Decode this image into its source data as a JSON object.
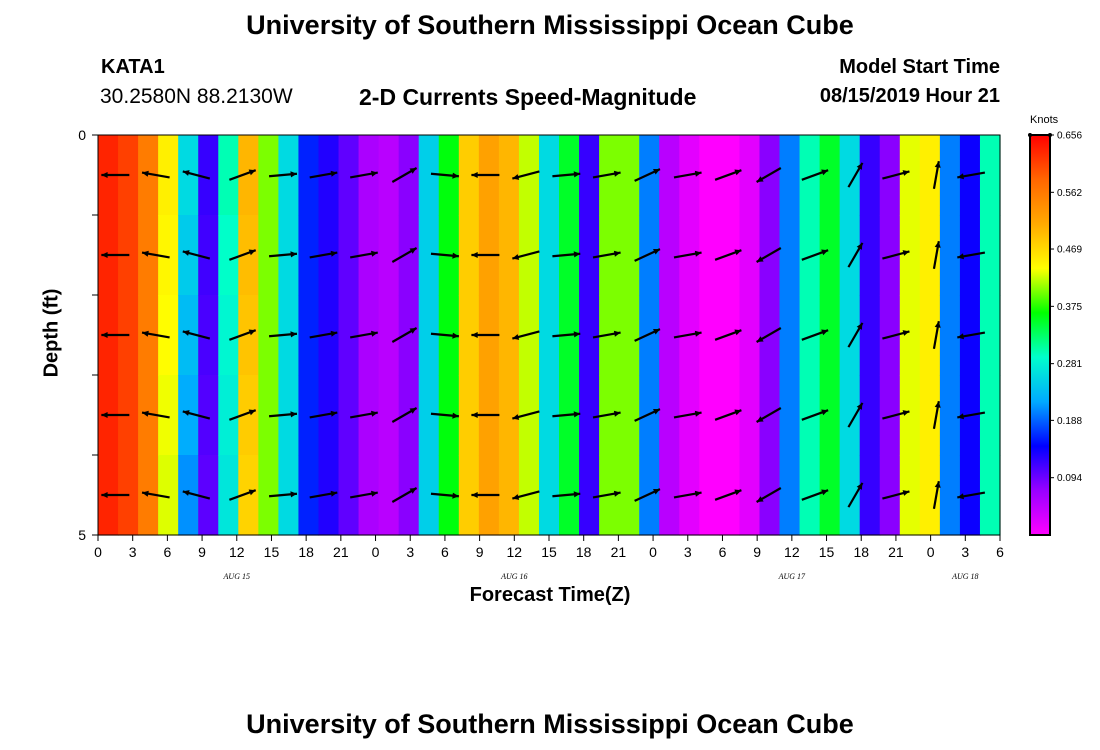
{
  "header": {
    "title": "University of Southern Mississippi Ocean Cube",
    "station": "KATA1",
    "coordinates": "30.2580N 88.2130W",
    "subtitle": "2-D Currents Speed-Magnitude",
    "model_start_label": "Model Start Time",
    "model_start_value": "08/15/2019 Hour 21"
  },
  "footer": {
    "title": "University of Southern Mississippi Ocean Cube"
  },
  "chart_data": {
    "type": "heatmap",
    "title": "2-D Currents Speed-Magnitude",
    "xlabel": "Forecast Time(Z)",
    "ylabel": "Depth (ft)",
    "x_tick_labels": [
      "0",
      "3",
      "6",
      "9",
      "12",
      "15",
      "18",
      "21",
      "0",
      "3",
      "6",
      "9",
      "12",
      "15",
      "18",
      "21",
      "0",
      "3",
      "6",
      "9",
      "12",
      "15",
      "18",
      "21",
      "0",
      "3",
      "6"
    ],
    "date_labels": [
      {
        "text": "AUG 15",
        "at_hour": 12
      },
      {
        "text": "AUG 16",
        "at_hour": 36
      },
      {
        "text": "AUG 17",
        "at_hour": 60
      },
      {
        "text": "AUG 18",
        "at_hour": 75
      }
    ],
    "x_range_hours": [
      0,
      78
    ],
    "y_tick_labels": [
      "0",
      "5"
    ],
    "ylim": [
      0,
      5
    ],
    "colorbar": {
      "units": "Knots",
      "ticks": [
        "0.656",
        "0.562",
        "0.469",
        "0.375",
        "0.281",
        "0.188",
        "0.094"
      ],
      "tick_values": [
        0.656,
        0.562,
        0.469,
        0.375,
        0.281,
        0.188,
        0.094
      ],
      "range": [
        0,
        0.656
      ],
      "colors": [
        "#ff00ff",
        "#9900ff",
        "#0000ff",
        "#00aaff",
        "#00ffcc",
        "#00ff00",
        "#ffff00",
        "#ffaa00",
        "#ff6600",
        "#ff0000"
      ]
    },
    "depth_bins": 5,
    "speed_profile_surface": [
      0.63,
      0.61,
      0.56,
      0.45,
      0.26,
      0.12,
      0.3,
      0.5,
      0.4,
      0.26,
      0.16,
      0.13,
      0.1,
      0.06,
      0.05,
      0.08,
      0.25,
      0.36,
      0.48,
      0.52,
      0.5,
      0.42,
      0.26,
      0.35,
      0.12,
      0.4,
      0.4,
      0.2,
      0.05,
      0.02,
      0.0,
      0.0,
      0.02,
      0.08,
      0.2,
      0.3,
      0.35,
      0.26,
      0.12,
      0.08,
      0.43,
      0.45,
      0.2,
      0.14,
      0.3
    ],
    "bottom_factor": [
      1,
      1,
      1,
      0.95,
      0.8,
      0.85,
      0.9,
      0.95,
      1,
      1,
      1,
      1,
      1,
      1,
      1,
      1,
      1,
      1,
      1,
      1,
      1,
      1,
      1,
      1,
      1,
      1,
      1,
      1,
      1,
      1,
      1,
      1,
      1,
      1,
      1,
      1,
      1,
      1,
      1,
      1,
      1,
      1,
      1,
      1,
      1
    ],
    "arrow_times": [
      1.5,
      5,
      8.5,
      12.5,
      16,
      19.5,
      23,
      26.5,
      30,
      33.5,
      37,
      40.5,
      44,
      47.5,
      51,
      54.5,
      58,
      62,
      65.5,
      69,
      72.5,
      75.5
    ],
    "arrow_directions_deg": [
      180,
      170,
      165,
      20,
      5,
      10,
      10,
      30,
      355,
      180,
      195,
      5,
      10,
      25,
      10,
      20,
      210,
      20,
      60,
      15,
      80,
      190
    ],
    "arrow_depths": [
      0.5,
      1.5,
      2.5,
      3.5,
      4.5
    ]
  }
}
